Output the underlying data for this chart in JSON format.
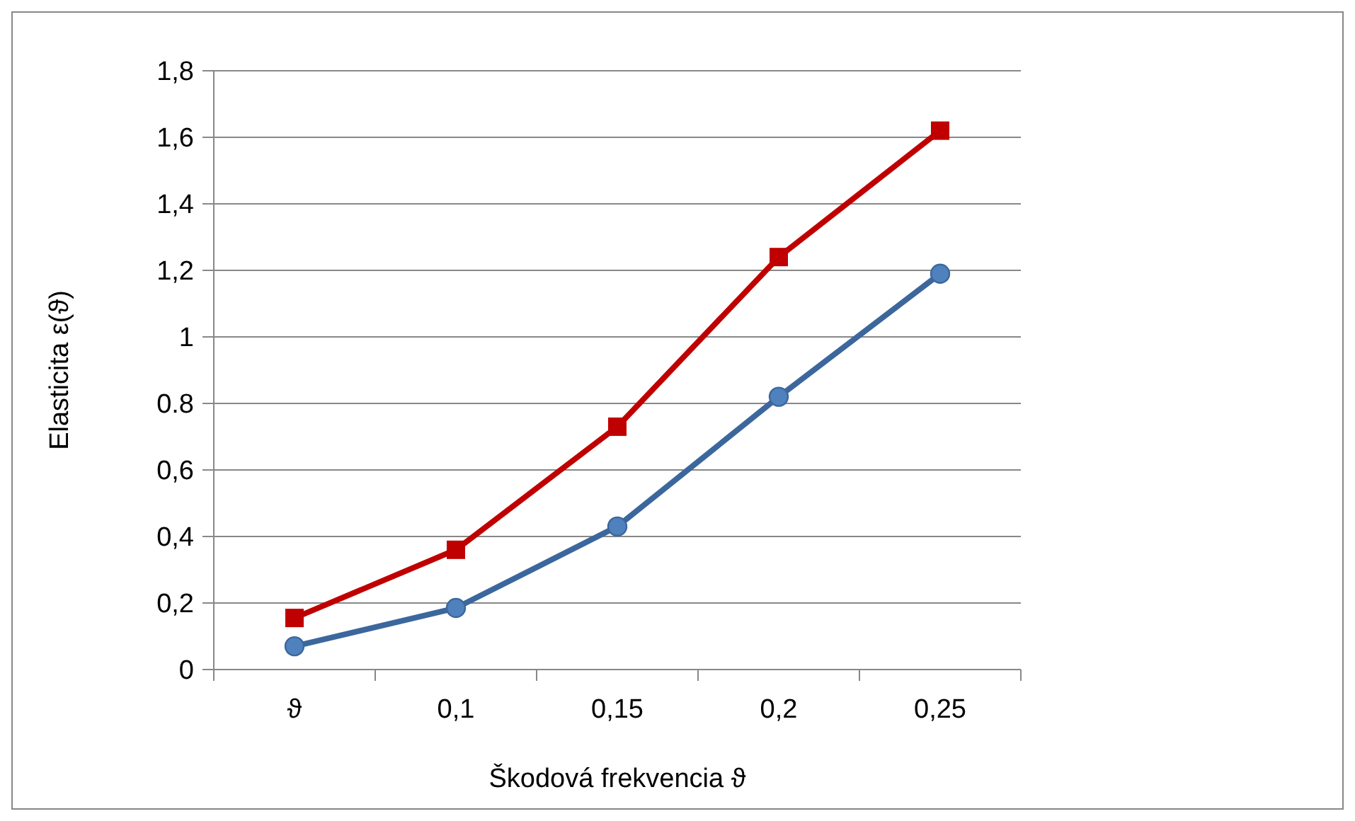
{
  "chart_data": {
    "type": "line",
    "xlabel": "Škodová frekvencia ϑ",
    "ylabel": "Elasticita ε(ϑ)",
    "categories": [
      "ϑ",
      "0,1",
      "0,15",
      "0,2",
      "0,25"
    ],
    "series": [
      {
        "color": "#3c679d",
        "marker": "circle",
        "values": [
          0.07,
          0.185,
          0.43,
          0.82,
          1.19
        ]
      },
      {
        "color": "#c00000",
        "marker": "square",
        "values": [
          0.155,
          0.36,
          0.73,
          1.24,
          1.62
        ]
      }
    ],
    "ylim": [
      0,
      1.8
    ],
    "yticks": [
      0,
      {
        "value": 0.2,
        "label": "0,2"
      },
      {
        "value": 0.4,
        "label": "0,4"
      },
      {
        "value": 0.6,
        "label": "0,6"
      },
      {
        "value": 0.8,
        "label": "0.8"
      },
      1,
      {
        "value": 1.2,
        "label": "1,2"
      },
      {
        "value": 1.4,
        "label": "1,4"
      },
      {
        "value": 1.6,
        "label": "1,6"
      },
      {
        "value": 1.8,
        "label": "1,8"
      }
    ],
    "grid": "y"
  }
}
